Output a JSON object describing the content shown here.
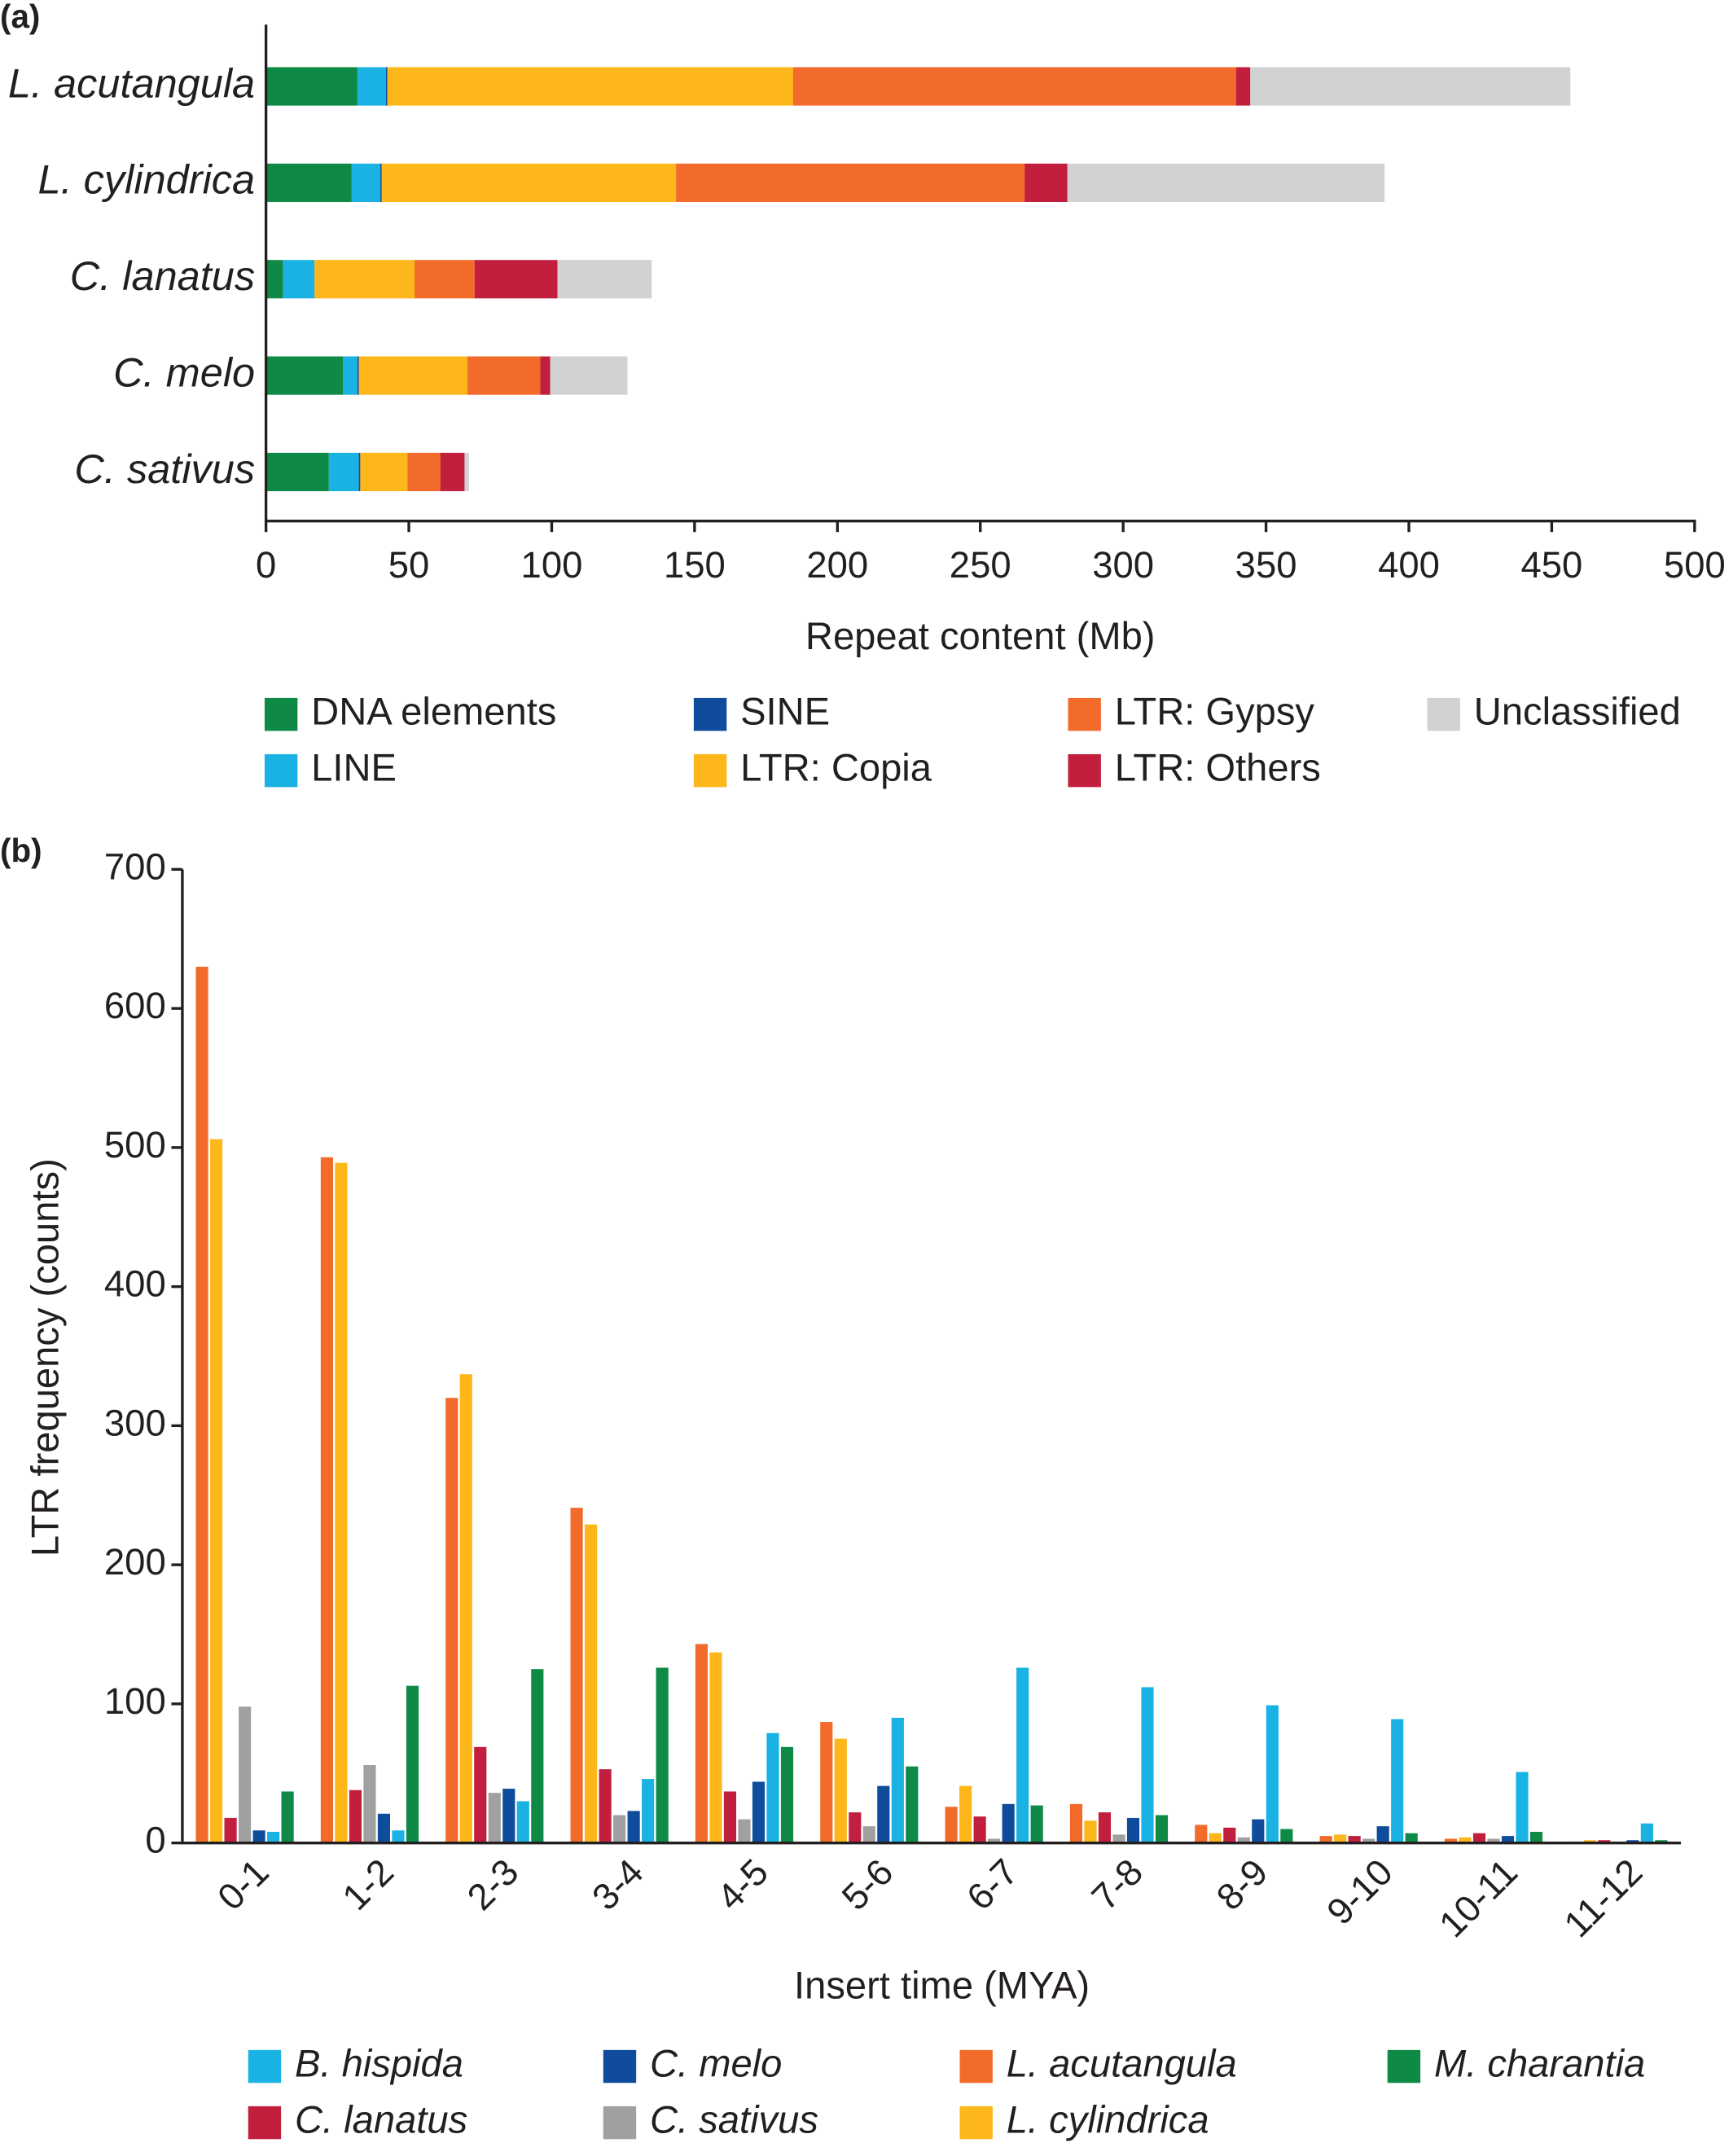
{
  "chart_data": [
    {
      "type": "bar",
      "orientation": "horizontal",
      "stacked": true,
      "panel_label": "(a)",
      "categories": [
        "L. acutangula",
        "L. cylindrica",
        "C. lanatus",
        "C. melo",
        "C. sativus"
      ],
      "x_label": "Repeat content (Mb)",
      "xlim": [
        0,
        500
      ],
      "xticks": [
        0,
        50,
        100,
        150,
        200,
        250,
        300,
        350,
        400,
        450,
        500
      ],
      "series": [
        {
          "name": "DNA elements",
          "color": "#0e8a46",
          "values": [
            32,
            30,
            6,
            27,
            22
          ]
        },
        {
          "name": "LINE",
          "color": "#1ab2e3",
          "values": [
            10,
            10,
            11,
            5,
            10.5
          ]
        },
        {
          "name": "SINE",
          "color": "#0f4c9c",
          "values": [
            0.5,
            0.5,
            0,
            0.5,
            0.5
          ]
        },
        {
          "name": "LTR: Copia",
          "color": "#fdb71a",
          "values": [
            142,
            103,
            35,
            38,
            16.5
          ]
        },
        {
          "name": "LTR: Gypsy",
          "color": "#f26b2a",
          "values": [
            155,
            122,
            21,
            25.5,
            11.5
          ]
        },
        {
          "name": "LTR: Others",
          "color": "#c21f3e",
          "values": [
            5,
            15,
            29,
            3.5,
            8.5
          ]
        },
        {
          "name": "Unclassified",
          "color": "#d2d2d3",
          "values": [
            112,
            111,
            33,
            27,
            1.5
          ]
        }
      ]
    },
    {
      "type": "bar",
      "panel_label": "(b)",
      "categories": [
        "0-1",
        "1-2",
        "2-3",
        "3-4",
        "4-5",
        "5-6",
        "6-7",
        "7-8",
        "8-9",
        "9-10",
        "10-11",
        "11-12"
      ],
      "x_label": "Insert time (MYA)",
      "y_label": "LTR frequency (counts)",
      "ylim": [
        0,
        700
      ],
      "yticks": [
        0,
        100,
        200,
        300,
        400,
        500,
        600,
        700
      ],
      "series": [
        {
          "name": "L. acutangula",
          "color": "#f26b2a",
          "values": [
            630,
            493,
            320,
            241,
            143,
            87,
            26,
            28,
            13,
            5,
            3,
            1
          ]
        },
        {
          "name": "L. cylindrica",
          "color": "#fdb71a",
          "values": [
            506,
            489,
            337,
            229,
            137,
            75,
            41,
            16,
            7,
            6,
            4,
            2
          ]
        },
        {
          "name": "C. lanatus",
          "color": "#c21f3e",
          "values": [
            18,
            38,
            69,
            53,
            37,
            22,
            19,
            22,
            11,
            5,
            7,
            2
          ]
        },
        {
          "name": "C. sativus",
          "color": "#a0a0a0",
          "values": [
            98,
            56,
            36,
            20,
            17,
            12,
            3,
            6,
            4,
            3,
            3,
            1
          ]
        },
        {
          "name": "C. melo",
          "color": "#0f4c9c",
          "values": [
            9,
            21,
            39,
            23,
            44,
            41,
            28,
            18,
            17,
            12,
            5,
            2
          ]
        },
        {
          "name": "B. hispida",
          "color": "#1ab2e3",
          "values": [
            8,
            9,
            30,
            46,
            79,
            90,
            126,
            112,
            99,
            89,
            51,
            14
          ]
        },
        {
          "name": "M. charantia",
          "color": "#0e8a46",
          "values": [
            37,
            113,
            125,
            126,
            69,
            55,
            27,
            20,
            10,
            7,
            8,
            2
          ]
        }
      ]
    }
  ]
}
